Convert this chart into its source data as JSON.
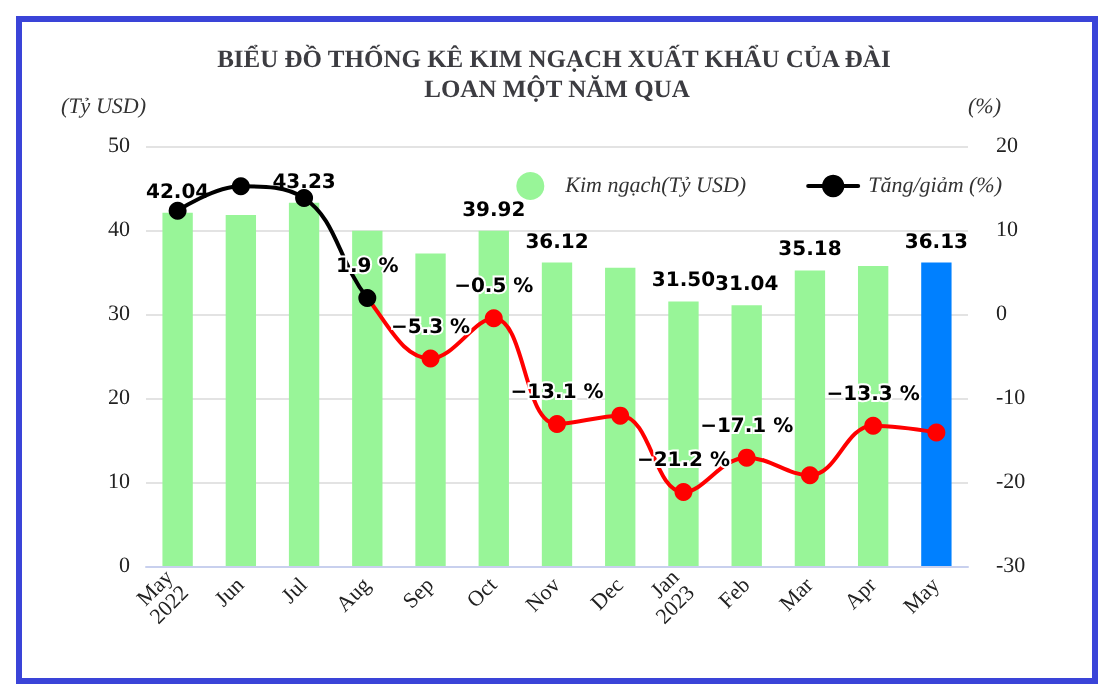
{
  "chart_data": {
    "type": "bar",
    "title": "BIỂU ĐỒ THỐNG KÊ KIM NGẠCH XUẤT KHẨU CỦA ĐÀI LOAN MỘT NĂM QUA",
    "ylabel": "(Tỷ USD)",
    "y2label": "(%)",
    "categories": [
      "May 2022",
      "Jun",
      "Jul",
      "Aug",
      "Sep",
      "Oct",
      "Nov",
      "Dec",
      "Jan 2023",
      "Feb",
      "Mar",
      "Apr",
      "May"
    ],
    "series": [
      {
        "name": "Kim ngạch(Tỷ USD)",
        "color": "#98f598",
        "colors": [
          "#98f598",
          "#98f598",
          "#98f598",
          "#98f598",
          "#98f598",
          "#98f598",
          "#98f598",
          "#98f598",
          "#98f598",
          "#98f598",
          "#98f598",
          "#98f598",
          "#0080ff"
        ],
        "values": [
          42.04,
          41.8,
          43.23,
          39.9,
          37.2,
          39.92,
          36.12,
          35.5,
          31.5,
          31.04,
          35.18,
          35.7,
          36.13
        ],
        "value_labels": [
          "42.04",
          null,
          "43.23",
          null,
          null,
          "39.92",
          "36.12",
          null,
          "31.50",
          "31.04",
          "35.18",
          null,
          "36.13"
        ]
      },
      {
        "name": "Tăng/giảm (%)",
        "type": "line",
        "axis": "y2",
        "color": "#000000",
        "colors": [
          "#000000",
          "#000000",
          "#000000",
          "#000000",
          "#ff0000",
          "#ff0000",
          "#ff0000",
          "#ff0000",
          "#ff0000",
          "#ff0000",
          "#ff0000",
          "#ff0000",
          "#ff0000"
        ],
        "values": [
          12.3,
          15.2,
          13.8,
          1.9,
          -5.3,
          -0.5,
          -13.1,
          -12.1,
          -21.2,
          -17.1,
          -19.2,
          -13.3,
          -14.1
        ],
        "value_labels": [
          null,
          null,
          null,
          "1.9 %",
          "−5.3 %",
          "−0.5 %",
          "−13.1 %",
          null,
          "−21.2 %",
          "−17.1 %",
          null,
          "−13.3 %",
          null
        ]
      }
    ],
    "ylim": [
      0,
      50
    ],
    "yticks": [
      0,
      10,
      20,
      30,
      40,
      50
    ],
    "y2lim": [
      -30,
      20
    ],
    "y2ticks": [
      -30,
      -20,
      -10,
      0,
      10,
      20
    ],
    "grid": "y",
    "legend": "top right",
    "marker": "circle",
    "line_style": "solid"
  }
}
